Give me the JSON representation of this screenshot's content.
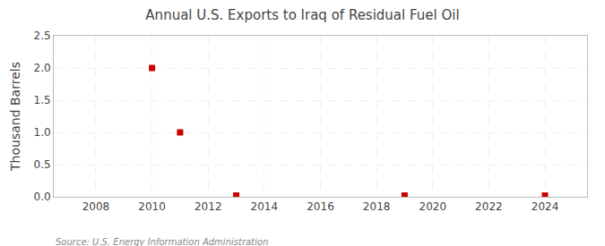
{
  "chart_data": {
    "type": "scatter",
    "title": "Annual U.S. Exports to Iraq of Residual Fuel Oil",
    "ylabel": "Thousand Barrels",
    "annotations": [
      "Source: U.S. Energy Information Administration"
    ],
    "x": [
      2010,
      2011,
      2013,
      2019,
      2024
    ],
    "values": [
      2.0,
      1.0,
      0.02,
      0.02,
      0.02
    ],
    "color": "#cc0000",
    "marker": "square",
    "xlim": [
      2006.5,
      2025.5
    ],
    "ylim": [
      0,
      2.5
    ],
    "xticks": [
      2008,
      2010,
      2012,
      2014,
      2016,
      2018,
      2020,
      2022,
      2024
    ],
    "yticks": [
      {
        "value": 0.0,
        "label": "0.0"
      },
      0.5,
      {
        "value": 1.0,
        "label": "1.0"
      },
      1.5,
      {
        "value": 2.0,
        "label": "2.0"
      },
      2.5
    ],
    "grid": true
  }
}
